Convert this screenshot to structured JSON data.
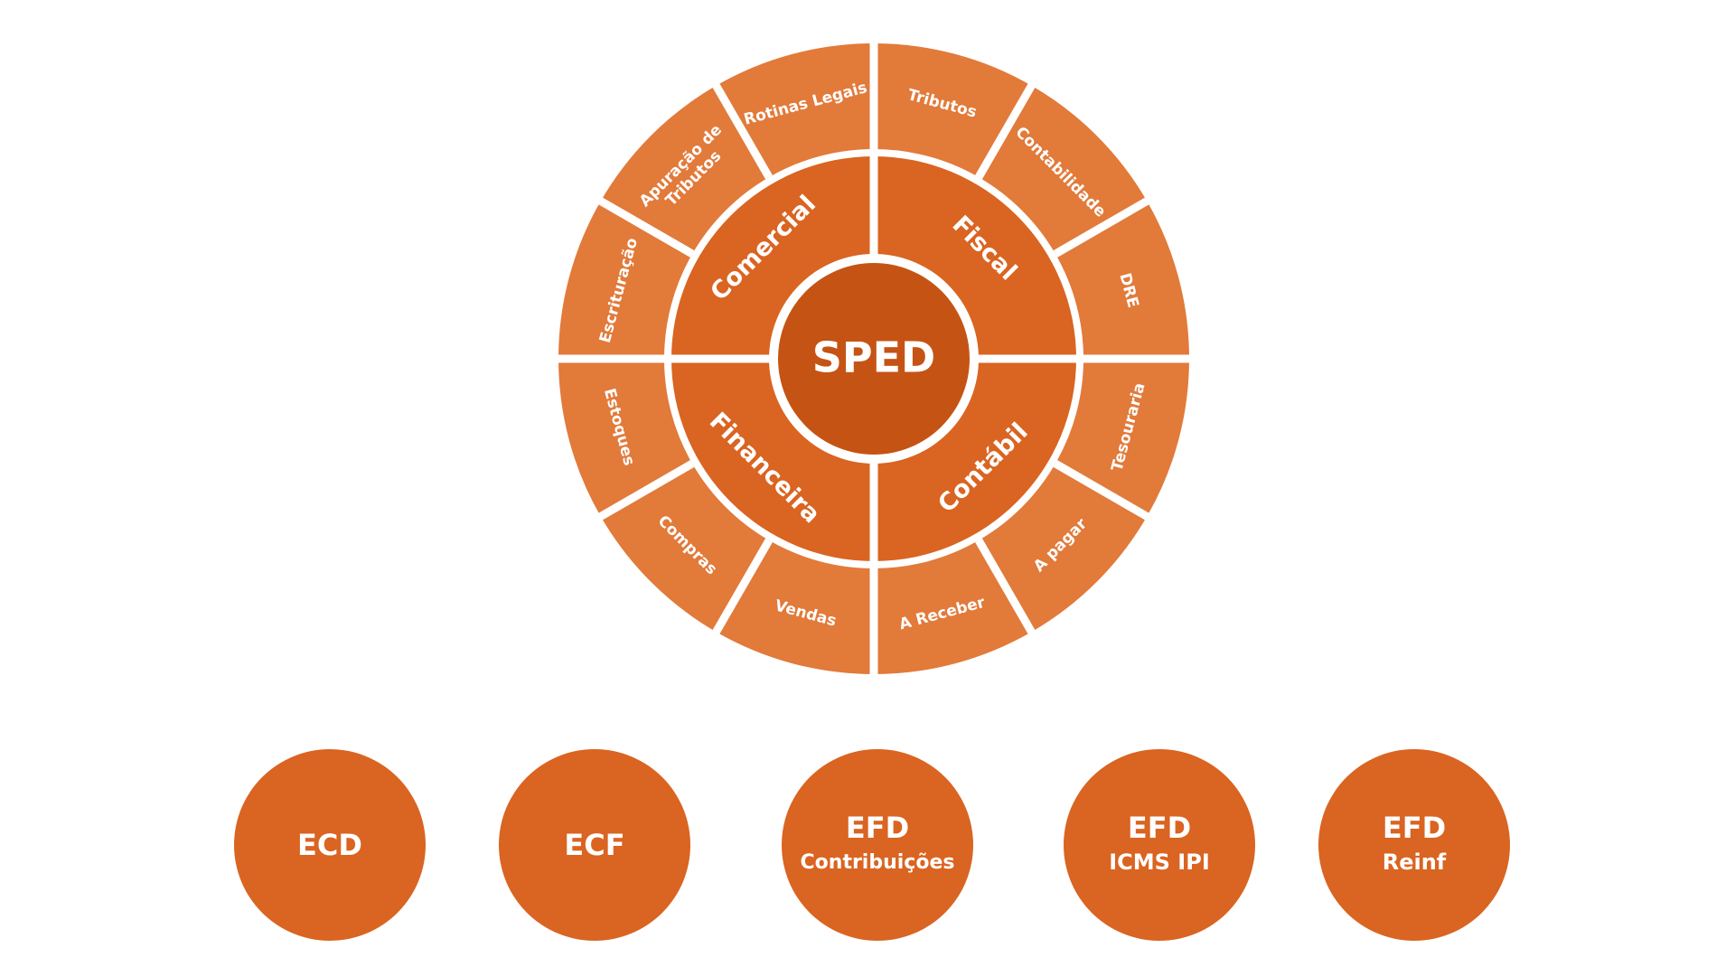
{
  "wheel": {
    "center_label": "SPED",
    "colors": {
      "center": "#C55414",
      "middle": "#DA6421",
      "outer": "#E27A3A",
      "gap": "#FFFFFF",
      "text": "#FFFFFF"
    },
    "middle_segments": [
      {
        "id": "fiscal",
        "label": "Fiscal"
      },
      {
        "id": "contabil",
        "label": "Contábil"
      },
      {
        "id": "financeira",
        "label": "Financeira"
      },
      {
        "id": "comercial",
        "label": "Comercial"
      }
    ],
    "outer_segments": [
      {
        "id": "tributos",
        "lines": [
          "Tributos"
        ]
      },
      {
        "id": "contabilidade",
        "lines": [
          "Contabilidade"
        ]
      },
      {
        "id": "dre",
        "lines": [
          "DRE"
        ]
      },
      {
        "id": "tesouraria",
        "lines": [
          "Tesouraria"
        ]
      },
      {
        "id": "a-pagar",
        "lines": [
          "A pagar"
        ]
      },
      {
        "id": "a-receber",
        "lines": [
          "A Receber"
        ]
      },
      {
        "id": "vendas",
        "lines": [
          "Vendas"
        ]
      },
      {
        "id": "compras",
        "lines": [
          "Compras"
        ]
      },
      {
        "id": "estoques",
        "lines": [
          "Estoques"
        ]
      },
      {
        "id": "escrituracao",
        "lines": [
          "Escrituração"
        ]
      },
      {
        "id": "apuracao-de-tributos",
        "lines": [
          "Apuração de",
          "Tributos"
        ]
      },
      {
        "id": "rotinas-legais",
        "lines": [
          "Rotinas Legais"
        ]
      }
    ]
  },
  "bubbles": {
    "color": "#DA6421",
    "items": [
      {
        "id": "ecd",
        "title": "ECD",
        "subtitle": ""
      },
      {
        "id": "ecf",
        "title": "ECF",
        "subtitle": ""
      },
      {
        "id": "efd-contribuicoes",
        "title": "EFD",
        "subtitle": "Contribuições"
      },
      {
        "id": "efd-icms-ipi",
        "title": "EFD",
        "subtitle": "ICMS IPI"
      },
      {
        "id": "efd-reinf",
        "title": "EFD",
        "subtitle": "Reinf"
      }
    ]
  }
}
